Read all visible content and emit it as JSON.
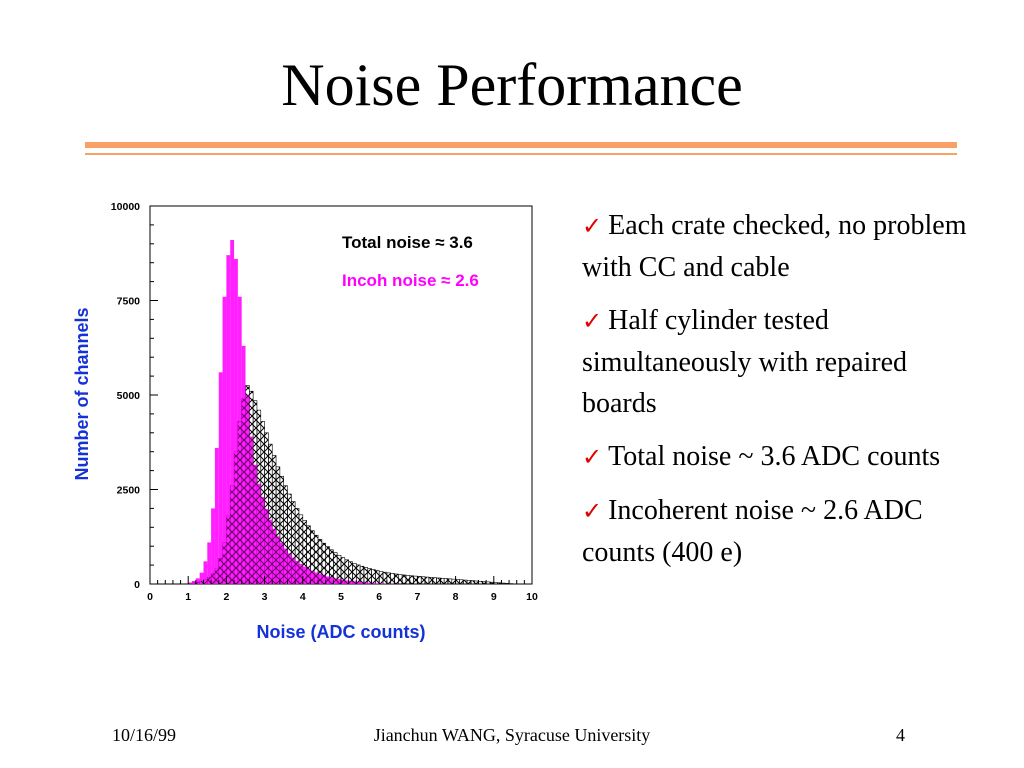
{
  "slide": {
    "title": "Noise Performance",
    "accent_color": "#f9a165"
  },
  "chart_data": {
    "type": "histogram",
    "title": "",
    "xlabel": "Noise (ADC counts)",
    "ylabel": "Number of channels",
    "xlim": [
      0,
      10
    ],
    "ylim": [
      0,
      10000
    ],
    "xticks": [
      "0",
      "1",
      "2",
      "3",
      "4",
      "5",
      "6",
      "7",
      "8",
      "9",
      "10"
    ],
    "yticks": [
      "0",
      "2500",
      "5000",
      "7500",
      "10000"
    ],
    "annotations": [
      "Total noise ≈ 3.6",
      "Incoh noise ≈ 2.6"
    ],
    "bin_width": 0.1,
    "bin_start": 1.0,
    "series": [
      {
        "name": "Total noise",
        "style": "hatched",
        "color": "#000000",
        "values": [
          20,
          30,
          50,
          80,
          120,
          180,
          280,
          420,
          680,
          1100,
          1800,
          2600,
          3500,
          4300,
          4900,
          5250,
          5100,
          4850,
          4600,
          4300,
          4000,
          3700,
          3400,
          3100,
          2850,
          2600,
          2380,
          2180,
          2000,
          1830,
          1680,
          1540,
          1410,
          1290,
          1180,
          1080,
          990,
          905,
          830,
          760,
          700,
          640,
          590,
          545,
          505,
          470,
          438,
          408,
          380,
          355,
          332,
          312,
          294,
          278,
          264,
          251,
          239,
          228,
          218,
          209,
          200,
          192,
          184,
          176,
          168,
          160,
          152,
          144,
          136,
          128,
          120,
          112,
          104,
          96,
          88,
          80,
          72,
          64,
          56,
          48,
          40,
          32,
          24,
          16,
          10,
          5,
          2,
          1,
          0,
          0
        ]
      },
      {
        "name": "Incoh noise",
        "style": "filled",
        "color": "#ff00ff",
        "values": [
          40,
          80,
          150,
          300,
          600,
          1100,
          2000,
          3600,
          5600,
          7600,
          8700,
          9100,
          8600,
          7600,
          6300,
          5000,
          3900,
          3150,
          2650,
          2300,
          1980,
          1700,
          1460,
          1260,
          1090,
          940,
          810,
          700,
          610,
          530,
          460,
          400,
          350,
          305,
          265,
          230,
          200,
          175,
          150,
          130,
          110,
          95,
          80,
          68,
          56,
          46,
          38,
          30,
          24,
          18,
          13,
          9,
          6,
          4,
          2,
          1,
          0,
          0,
          0,
          0,
          0,
          0,
          0,
          0,
          0,
          0,
          0,
          0,
          0,
          0,
          0,
          0,
          0,
          0,
          0,
          0,
          0,
          0,
          0,
          0,
          0,
          0,
          0,
          0,
          0,
          0,
          0,
          0,
          0,
          0
        ]
      }
    ],
    "annotation_colors": [
      "#000000",
      "#ff00ff"
    ]
  },
  "bullets": [
    "Each crate checked, no problem with CC and cable",
    "Half cylinder tested simultaneously with repaired boards",
    "Total noise ~ 3.6 ADC counts",
    "Incoherent noise ~ 2.6 ADC counts (400 e)"
  ],
  "check_glyph": "✓",
  "footer": {
    "date": "10/16/99",
    "author": "Jianchun WANG, Syracuse University",
    "page": "4"
  }
}
